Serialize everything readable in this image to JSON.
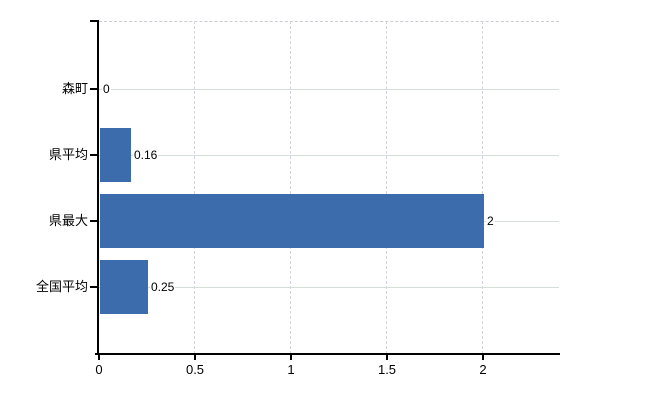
{
  "chart_data": {
    "type": "bar",
    "orientation": "horizontal",
    "title": "",
    "xlabel": "",
    "ylabel": "",
    "categories": [
      "森町",
      "県平均",
      "県最大",
      "全国平均"
    ],
    "values": [
      0,
      0.16,
      2,
      0.25
    ],
    "value_labels": [
      "0",
      "0.16",
      "2",
      "0.25"
    ],
    "xticks": [
      0,
      0.5,
      1,
      1.5,
      2
    ],
    "xtick_labels": [
      "0",
      "0.5",
      "1",
      "1.5",
      "2"
    ],
    "xlim": [
      0,
      2.4
    ],
    "grid": true,
    "legend": false,
    "colors": {
      "bar": "#3c6cab",
      "axis": "#000000",
      "gridline_horizontal": "#d6ddd6",
      "gridline_vertical": "#d3d4de",
      "top_border_dash": "#c9ccd6",
      "background": "#ffffff",
      "text": "#000000"
    }
  }
}
